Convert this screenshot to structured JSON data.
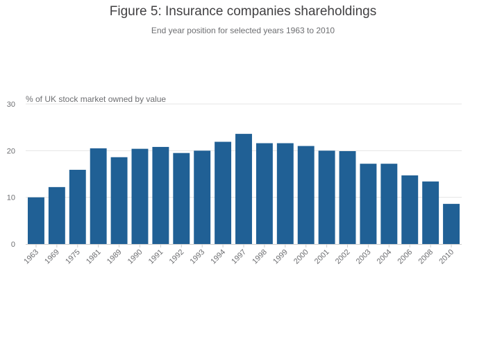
{
  "chart_data": {
    "type": "bar",
    "title": "Figure 5: Insurance companies shareholdings",
    "subtitle": "End year position for selected years 1963 to 2010",
    "ylabel": "% of UK stock market owned by value",
    "xlabel": "",
    "ylim": [
      0,
      30
    ],
    "yticks": [
      0,
      10,
      20,
      30
    ],
    "grid": true,
    "categories": [
      "1963",
      "1969",
      "1975",
      "1981",
      "1989",
      "1990",
      "1991",
      "1992",
      "1993",
      "1994",
      "1997",
      "1998",
      "1999",
      "2000",
      "2001",
      "2002",
      "2003",
      "2004",
      "2006",
      "2008",
      "2010"
    ],
    "values": [
      10.0,
      12.2,
      15.9,
      20.5,
      18.6,
      20.4,
      20.8,
      19.5,
      20.0,
      21.9,
      23.6,
      21.6,
      21.6,
      21.0,
      20.0,
      19.9,
      17.2,
      17.2,
      14.7,
      13.4,
      8.6
    ],
    "bar_color": "#206095",
    "grid_color": "#e5e5e5",
    "axis_color": "#cccccc"
  }
}
